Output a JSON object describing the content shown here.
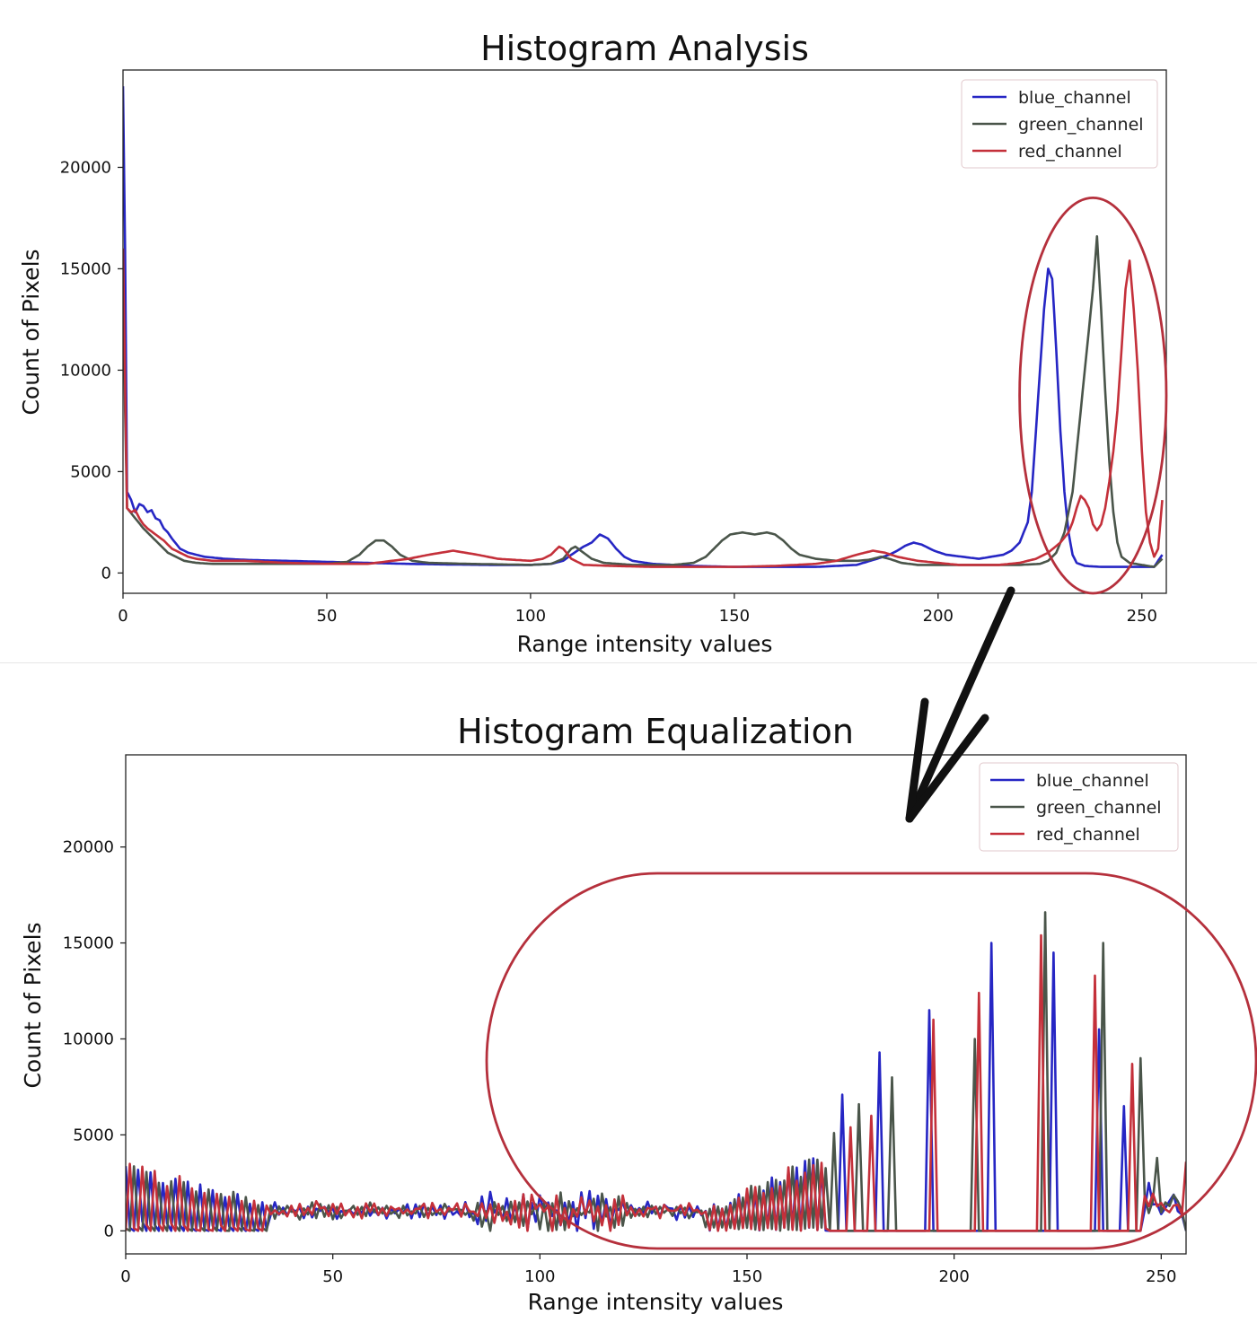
{
  "colors": {
    "blue_channel": "#2626c4",
    "green_channel": "#4a554a",
    "red_channel": "#c4303a",
    "annotation": "#b5303c",
    "arrow": "#111111"
  },
  "chart_data": [
    {
      "type": "line",
      "title": "Histogram Analysis",
      "xlabel": "Range intensity values",
      "ylabel": "Count of Pixels",
      "xlim": [
        0,
        256
      ],
      "ylim": [
        -1000,
        24800
      ],
      "xticks": [
        0,
        50,
        100,
        150,
        200,
        250
      ],
      "yticks": [
        0,
        5000,
        10000,
        15000,
        20000
      ],
      "grid": false,
      "legend": "top-right",
      "series": [
        {
          "name": "blue_channel",
          "color": "#2626c4",
          "anchors": [
            [
              0,
              24000
            ],
            [
              0.5,
              16000
            ],
            [
              1,
              4000
            ],
            [
              2,
              3600
            ],
            [
              3,
              3000
            ],
            [
              4,
              3400
            ],
            [
              5,
              3300
            ],
            [
              6,
              3000
            ],
            [
              7,
              3100
            ],
            [
              8,
              2700
            ],
            [
              9,
              2600
            ],
            [
              10,
              2200
            ],
            [
              11,
              2000
            ],
            [
              12,
              1700
            ],
            [
              14,
              1200
            ],
            [
              16,
              1000
            ],
            [
              18,
              900
            ],
            [
              20,
              800
            ],
            [
              25,
              700
            ],
            [
              30,
              650
            ],
            [
              35,
              620
            ],
            [
              40,
              600
            ],
            [
              50,
              550
            ],
            [
              60,
              500
            ],
            [
              70,
              450
            ],
            [
              80,
              420
            ],
            [
              90,
              400
            ],
            [
              100,
              400
            ],
            [
              105,
              450
            ],
            [
              108,
              600
            ],
            [
              110,
              900
            ],
            [
              113,
              1300
            ],
            [
              115,
              1500
            ],
            [
              117,
              1900
            ],
            [
              119,
              1700
            ],
            [
              121,
              1200
            ],
            [
              123,
              800
            ],
            [
              125,
              600
            ],
            [
              130,
              450
            ],
            [
              140,
              350
            ],
            [
              150,
              300
            ],
            [
              160,
              300
            ],
            [
              170,
              300
            ],
            [
              180,
              400
            ],
            [
              185,
              700
            ],
            [
              188,
              900
            ],
            [
              190,
              1100
            ],
            [
              192,
              1350
            ],
            [
              194,
              1500
            ],
            [
              196,
              1400
            ],
            [
              199,
              1100
            ],
            [
              202,
              900
            ],
            [
              206,
              800
            ],
            [
              210,
              700
            ],
            [
              213,
              800
            ],
            [
              216,
              900
            ],
            [
              218,
              1100
            ],
            [
              220,
              1500
            ],
            [
              222,
              2500
            ],
            [
              223,
              4000
            ],
            [
              224,
              7000
            ],
            [
              225,
              10000
            ],
            [
              226,
              13000
            ],
            [
              227,
              15000
            ],
            [
              228,
              14500
            ],
            [
              229,
              11000
            ],
            [
              230,
              7000
            ],
            [
              231,
              4000
            ],
            [
              232,
              2000
            ],
            [
              233,
              900
            ],
            [
              234,
              500
            ],
            [
              236,
              350
            ],
            [
              240,
              300
            ],
            [
              250,
              300
            ],
            [
              253,
              300
            ],
            [
              255,
              900
            ]
          ]
        },
        {
          "name": "green_channel",
          "color": "#4a554a",
          "anchors": [
            [
              0,
              16000
            ],
            [
              0.5,
              8000
            ],
            [
              1,
              3200
            ],
            [
              3,
              2700
            ],
            [
              5,
              2200
            ],
            [
              7,
              1800
            ],
            [
              9,
              1400
            ],
            [
              11,
              1000
            ],
            [
              13,
              800
            ],
            [
              15,
              600
            ],
            [
              18,
              500
            ],
            [
              22,
              450
            ],
            [
              30,
              450
            ],
            [
              40,
              450
            ],
            [
              50,
              450
            ],
            [
              55,
              550
            ],
            [
              58,
              900
            ],
            [
              60,
              1300
            ],
            [
              62,
              1600
            ],
            [
              64,
              1600
            ],
            [
              66,
              1300
            ],
            [
              68,
              900
            ],
            [
              71,
              600
            ],
            [
              75,
              500
            ],
            [
              85,
              450
            ],
            [
              100,
              400
            ],
            [
              105,
              450
            ],
            [
              108,
              700
            ],
            [
              110,
              1200
            ],
            [
              111,
              1300
            ],
            [
              113,
              1000
            ],
            [
              115,
              700
            ],
            [
              118,
              500
            ],
            [
              125,
              400
            ],
            [
              135,
              400
            ],
            [
              140,
              500
            ],
            [
              143,
              800
            ],
            [
              145,
              1200
            ],
            [
              147,
              1600
            ],
            [
              149,
              1900
            ],
            [
              152,
              2000
            ],
            [
              155,
              1900
            ],
            [
              158,
              2000
            ],
            [
              160,
              1900
            ],
            [
              162,
              1600
            ],
            [
              164,
              1200
            ],
            [
              166,
              900
            ],
            [
              170,
              700
            ],
            [
              175,
              600
            ],
            [
              180,
              600
            ],
            [
              183,
              650
            ],
            [
              186,
              800
            ],
            [
              188,
              700
            ],
            [
              191,
              500
            ],
            [
              195,
              400
            ],
            [
              210,
              400
            ],
            [
              220,
              400
            ],
            [
              225,
              450
            ],
            [
              227,
              600
            ],
            [
              229,
              1000
            ],
            [
              231,
              2000
            ],
            [
              233,
              4000
            ],
            [
              234,
              6000
            ],
            [
              235,
              8000
            ],
            [
              236,
              10000
            ],
            [
              237,
              12000
            ],
            [
              238,
              14000
            ],
            [
              239,
              16600
            ],
            [
              240,
              13000
            ],
            [
              241,
              9000
            ],
            [
              242,
              5500
            ],
            [
              243,
              3000
            ],
            [
              244,
              1500
            ],
            [
              245,
              800
            ],
            [
              247,
              500
            ],
            [
              250,
              400
            ],
            [
              253,
              300
            ],
            [
              255,
              700
            ]
          ]
        },
        {
          "name": "red_channel",
          "color": "#c4303a",
          "anchors": [
            [
              0,
              16000
            ],
            [
              0.5,
              9500
            ],
            [
              1,
              3200
            ],
            [
              2,
              3000
            ],
            [
              3,
              3100
            ],
            [
              4,
              2700
            ],
            [
              5,
              2400
            ],
            [
              6,
              2200
            ],
            [
              8,
              1900
            ],
            [
              10,
              1600
            ],
            [
              12,
              1200
            ],
            [
              14,
              1000
            ],
            [
              16,
              800
            ],
            [
              18,
              700
            ],
            [
              22,
              600
            ],
            [
              30,
              600
            ],
            [
              40,
              500
            ],
            [
              50,
              450
            ],
            [
              60,
              450
            ],
            [
              70,
              700
            ],
            [
              75,
              900
            ],
            [
              78,
              1000
            ],
            [
              81,
              1100
            ],
            [
              84,
              1000
            ],
            [
              87,
              900
            ],
            [
              92,
              700
            ],
            [
              100,
              600
            ],
            [
              103,
              700
            ],
            [
              105,
              900
            ],
            [
              107,
              1300
            ],
            [
              108,
              1200
            ],
            [
              110,
              700
            ],
            [
              113,
              400
            ],
            [
              120,
              350
            ],
            [
              130,
              300
            ],
            [
              140,
              300
            ],
            [
              150,
              300
            ],
            [
              160,
              350
            ],
            [
              170,
              450
            ],
            [
              175,
              600
            ],
            [
              180,
              900
            ],
            [
              184,
              1100
            ],
            [
              187,
              1000
            ],
            [
              190,
              800
            ],
            [
              195,
              600
            ],
            [
              205,
              400
            ],
            [
              215,
              400
            ],
            [
              220,
              500
            ],
            [
              224,
              700
            ],
            [
              227,
              1000
            ],
            [
              230,
              1500
            ],
            [
              232,
              2000
            ],
            [
              233,
              2500
            ],
            [
              234,
              3200
            ],
            [
              235,
              3800
            ],
            [
              236,
              3600
            ],
            [
              237,
              3200
            ],
            [
              238,
              2400
            ],
            [
              239,
              2100
            ],
            [
              240,
              2400
            ],
            [
              241,
              3200
            ],
            [
              242,
              4500
            ],
            [
              243,
              6000
            ],
            [
              244,
              8000
            ],
            [
              245,
              11000
            ],
            [
              246,
              14000
            ],
            [
              247,
              15400
            ],
            [
              248,
              13000
            ],
            [
              249,
              10000
            ],
            [
              250,
              6000
            ],
            [
              251,
              3000
            ],
            [
              252,
              1500
            ],
            [
              253,
              800
            ],
            [
              254,
              1200
            ],
            [
              255,
              3600
            ]
          ]
        }
      ],
      "annotation": {
        "shape": "ellipse",
        "color": "#b5303c",
        "x_range": [
          220,
          256
        ],
        "y_range": [
          -1000,
          18500
        ]
      }
    },
    {
      "type": "line",
      "title": "Histogram Equalization",
      "xlabel": "Range intensity values",
      "ylabel": "Count of Pixels",
      "xlim": [
        0,
        256
      ],
      "ylim": [
        -1200,
        24800
      ],
      "xticks": [
        0,
        50,
        100,
        150,
        200,
        250
      ],
      "yticks": [
        0,
        5000,
        10000,
        15000,
        20000
      ],
      "grid": false,
      "legend": "top-right",
      "series": [
        {
          "name": "blue_channel",
          "color": "#2626c4"
        },
        {
          "name": "green_channel",
          "color": "#4a554a"
        },
        {
          "name": "red_channel",
          "color": "#c4303a"
        }
      ],
      "spikes": {
        "blue_channel": [
          [
            173,
            7100
          ],
          [
            182,
            9300
          ],
          [
            194,
            11500
          ],
          [
            209,
            15000
          ],
          [
            224,
            14500
          ],
          [
            235,
            10500
          ],
          [
            241,
            6500
          ],
          [
            247,
            2500
          ]
        ],
        "green_channel": [
          [
            171,
            5100
          ],
          [
            177,
            6600
          ],
          [
            185,
            8000
          ],
          [
            205,
            10000
          ],
          [
            222,
            16600
          ],
          [
            236,
            15000
          ],
          [
            245,
            9000
          ],
          [
            249,
            3800
          ]
        ],
        "red_channel": [
          [
            175,
            5400
          ],
          [
            180,
            6000
          ],
          [
            195,
            11000
          ],
          [
            206,
            12400
          ],
          [
            221,
            15400
          ],
          [
            234,
            13300
          ],
          [
            243,
            8700
          ],
          [
            256,
            3600
          ]
        ]
      },
      "annotation": {
        "shape": "ellipse",
        "color": "#b5303c",
        "x_range": [
          87,
          265
        ],
        "y_range": [
          -1000,
          18500
        ]
      }
    }
  ]
}
